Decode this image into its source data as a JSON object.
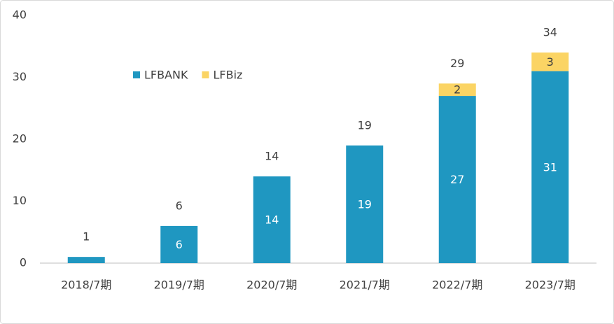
{
  "chart_data": {
    "type": "stacked-bar",
    "categories": [
      "2018/7期",
      "2019/7期",
      "2020/7期",
      "2021/7期",
      "2022/7期",
      "2023/7期"
    ],
    "series": [
      {
        "name": "LFBANK",
        "color": "#1f97c1",
        "values": [
          1,
          6,
          14,
          19,
          27,
          31
        ]
      },
      {
        "name": "LFBiz",
        "color": "#fbd464",
        "values": [
          null,
          null,
          null,
          null,
          2,
          3
        ]
      }
    ],
    "totals": [
      1,
      6,
      14,
      19,
      29,
      34
    ],
    "ylim": [
      0,
      40
    ],
    "yticks": [
      0,
      10,
      20,
      30,
      40
    ],
    "grid": false,
    "legend": "top-left"
  }
}
